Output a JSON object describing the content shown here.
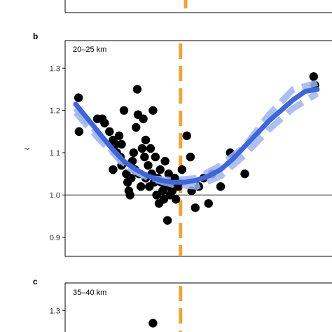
{
  "colors": {
    "points": "#000000",
    "fit": "#3f66d8",
    "fit_band": "#9db4ef",
    "marker_line": "#f0a43a",
    "reference_line": "#000000"
  },
  "panels": {
    "a": {
      "letter": ""
    },
    "b": {
      "letter": "b",
      "title": "20–25 km",
      "ylabel": "ξ",
      "yticks": [
        "0.9",
        "1.0",
        "1.1",
        "1.2",
        "1.3"
      ]
    },
    "c": {
      "letter": "c",
      "title": "35–40 km",
      "yticks": [
        "1.3"
      ]
    }
  },
  "chart_data": [
    {
      "panel": "b",
      "type": "scatter",
      "title": "20–25 km",
      "ylabel": "ξ",
      "xlim": [
        0,
        1
      ],
      "ylim": [
        0.855,
        1.365
      ],
      "yticks": [
        0.9,
        1.0,
        1.1,
        1.2,
        1.3
      ],
      "reference_line_y": 1.0,
      "vertical_dashed_line_x": 0.434,
      "grid": false,
      "points": [
        [
          0.012,
          1.23
        ],
        [
          0.014,
          1.15
        ],
        [
          0.09,
          1.18
        ],
        [
          0.11,
          1.18
        ],
        [
          0.12,
          1.17
        ],
        [
          0.14,
          1.15
        ],
        [
          0.155,
          1.13
        ],
        [
          0.165,
          1.12
        ],
        [
          0.155,
          1.06
        ],
        [
          0.17,
          1.1
        ],
        [
          0.18,
          1.14
        ],
        [
          0.185,
          1.09
        ],
        [
          0.19,
          1.07
        ],
        [
          0.19,
          1.12
        ],
        [
          0.2,
          1.2
        ],
        [
          0.21,
          1.05
        ],
        [
          0.215,
          1.03
        ],
        [
          0.22,
          1.01
        ],
        [
          0.23,
          1.04
        ],
        [
          0.225,
          1.0
        ],
        [
          0.235,
          1.08
        ],
        [
          0.24,
          1.1
        ],
        [
          0.245,
          1.06
        ],
        [
          0.25,
          1.16
        ],
        [
          0.255,
          1.25
        ],
        [
          0.258,
          1.19
        ],
        [
          0.262,
          1.05
        ],
        [
          0.27,
          1.02
        ],
        [
          0.275,
          1.11
        ],
        [
          0.28,
          1.18
        ],
        [
          0.285,
          1.09
        ],
        [
          0.29,
          1.13
        ],
        [
          0.29,
          1.04
        ],
        [
          0.3,
          1.07
        ],
        [
          0.305,
          1.02
        ],
        [
          0.31,
          1.11
        ],
        [
          0.315,
          1.05
        ],
        [
          0.32,
          1.2
        ],
        [
          0.325,
          1.03
        ],
        [
          0.33,
          1.09
        ],
        [
          0.335,
          1.0
        ],
        [
          0.34,
          1.04
        ],
        [
          0.345,
          0.98
        ],
        [
          0.35,
          1.06
        ],
        [
          0.355,
          1.03
        ],
        [
          0.36,
          1.01
        ],
        [
          0.365,
          0.99
        ],
        [
          0.37,
          1.08
        ],
        [
          0.375,
          1.02
        ],
        [
          0.38,
          0.94
        ],
        [
          0.385,
          1.05
        ],
        [
          0.39,
          1.0
        ],
        [
          0.395,
          1.03
        ],
        [
          0.4,
          1.01
        ],
        [
          0.41,
          1.04
        ],
        [
          0.415,
          0.99
        ],
        [
          0.425,
          1.02
        ],
        [
          0.44,
          1.06
        ],
        [
          0.46,
          1.14
        ],
        [
          0.475,
          1.09
        ],
        [
          0.48,
          1.01
        ],
        [
          0.495,
          0.97
        ],
        [
          0.51,
          1.02
        ],
        [
          0.53,
          1.04
        ],
        [
          0.55,
          0.98
        ],
        [
          0.565,
          1.05
        ],
        [
          0.6,
          1.02
        ],
        [
          0.64,
          1.1
        ],
        [
          0.7,
          1.05
        ],
        [
          0.985,
          1.28
        ],
        [
          0.99,
          1.26
        ]
      ],
      "fit_curve": [
        [
          0.0,
          1.215
        ],
        [
          0.05,
          1.18
        ],
        [
          0.1,
          1.145
        ],
        [
          0.15,
          1.11
        ],
        [
          0.2,
          1.08
        ],
        [
          0.25,
          1.06
        ],
        [
          0.3,
          1.045
        ],
        [
          0.35,
          1.035
        ],
        [
          0.4,
          1.03
        ],
        [
          0.45,
          1.03
        ],
        [
          0.5,
          1.035
        ],
        [
          0.55,
          1.045
        ],
        [
          0.6,
          1.06
        ],
        [
          0.65,
          1.085
        ],
        [
          0.7,
          1.115
        ],
        [
          0.75,
          1.145
        ],
        [
          0.8,
          1.175
        ],
        [
          0.85,
          1.2
        ],
        [
          0.9,
          1.225
        ],
        [
          0.95,
          1.245
        ],
        [
          1.0,
          1.25
        ]
      ],
      "fit_band_upper": [
        [
          0.0,
          1.205
        ],
        [
          0.1,
          1.14
        ],
        [
          0.2,
          1.07
        ],
        [
          0.3,
          1.04
        ],
        [
          0.4,
          1.035
        ],
        [
          0.5,
          1.04
        ],
        [
          0.6,
          1.07
        ],
        [
          0.7,
          1.115
        ],
        [
          0.8,
          1.19
        ],
        [
          0.9,
          1.25
        ],
        [
          1.0,
          1.265
        ]
      ],
      "fit_band_lower": [
        [
          0.0,
          1.195
        ],
        [
          0.1,
          1.13
        ],
        [
          0.2,
          1.075
        ],
        [
          0.3,
          1.04
        ],
        [
          0.4,
          1.025
        ],
        [
          0.5,
          1.02
        ],
        [
          0.6,
          1.045
        ],
        [
          0.7,
          1.095
        ],
        [
          0.8,
          1.155
        ],
        [
          0.9,
          1.205
        ],
        [
          1.0,
          1.24
        ]
      ]
    },
    {
      "panel": "c",
      "type": "scatter",
      "title": "35–40 km",
      "xlim": [
        0,
        1
      ],
      "ylim": [
        0.855,
        1.365
      ],
      "yticks": [
        1.3
      ],
      "vertical_dashed_line_x": 0.434,
      "points": [
        [
          0.32,
          1.27
        ]
      ]
    }
  ]
}
